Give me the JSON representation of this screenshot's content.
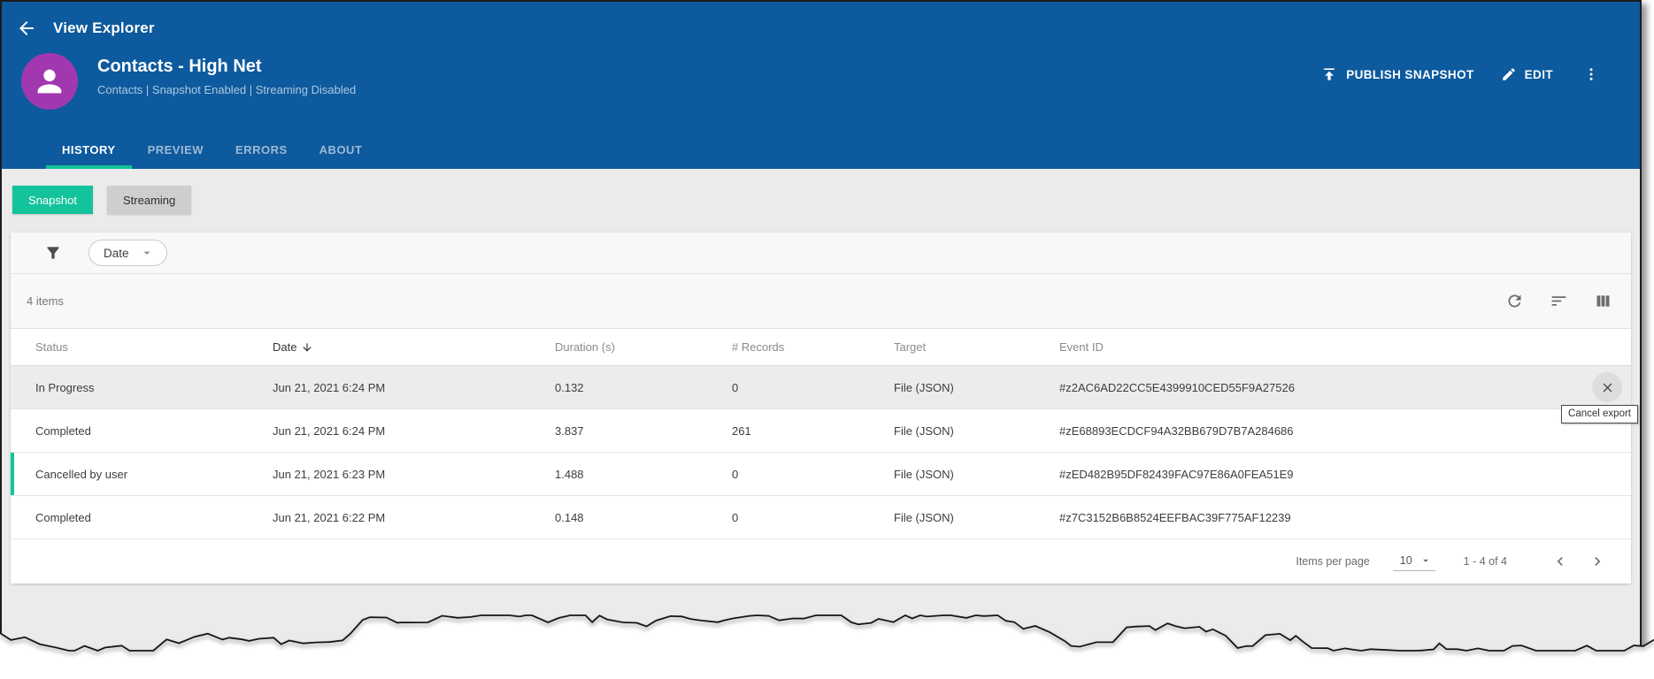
{
  "app_bar": {
    "title": "View Explorer"
  },
  "header": {
    "name": "Contacts - High Net",
    "subtitle": "Contacts | Snapshot Enabled | Streaming Disabled",
    "actions": {
      "publish": "PUBLISH SNAPSHOT",
      "edit": "EDIT"
    }
  },
  "tabs": [
    {
      "label": "HISTORY",
      "active": true
    },
    {
      "label": "PREVIEW",
      "active": false
    },
    {
      "label": "ERRORS",
      "active": false
    },
    {
      "label": "ABOUT",
      "active": false
    }
  ],
  "mode_buttons": [
    {
      "label": "Snapshot",
      "active": true
    },
    {
      "label": "Streaming",
      "active": false
    }
  ],
  "filter": {
    "chip_label": "Date"
  },
  "table": {
    "items_count": "4 items",
    "columns": [
      "Status",
      "Date",
      "Duration (s)",
      "# Records",
      "Target",
      "Event ID"
    ],
    "sort_column": "Date",
    "sort_direction": "descending",
    "rows": [
      {
        "status": "In Progress",
        "date": "Jun 21, 2021 6:24 PM",
        "duration": "0.132",
        "records": "0",
        "target": "File (JSON)",
        "event_id": "#z2AC6AD22CC5E4399910CED55F9A27526"
      },
      {
        "status": "Completed",
        "date": "Jun 21, 2021 6:24 PM",
        "duration": "3.837",
        "records": "261",
        "target": "File (JSON)",
        "event_id": "#zE68893ECDCF94A32BB679D7B7A284686"
      },
      {
        "status": "Cancelled by user",
        "date": "Jun 21, 2021 6:23 PM",
        "duration": "1.488",
        "records": "0",
        "target": "File (JSON)",
        "event_id": "#zED482B95DF82439FAC97E86A0FEA51E9"
      },
      {
        "status": "Completed",
        "date": "Jun 21, 2021 6:22 PM",
        "duration": "0.148",
        "records": "0",
        "target": "File (JSON)",
        "event_id": "#z7C3152B6B8524EEFBAC39F775AF12239"
      }
    ],
    "tooltip": "Cancel export"
  },
  "pagination": {
    "items_per_page_label": "Items per page",
    "items_per_page_value": "10",
    "range": "1 - 4 of 4"
  },
  "colors": {
    "header_blue": "#0d5a9e",
    "accent_teal": "#13c39b",
    "avatar_purple": "#a238b0",
    "page_background": "#ebebeb"
  }
}
